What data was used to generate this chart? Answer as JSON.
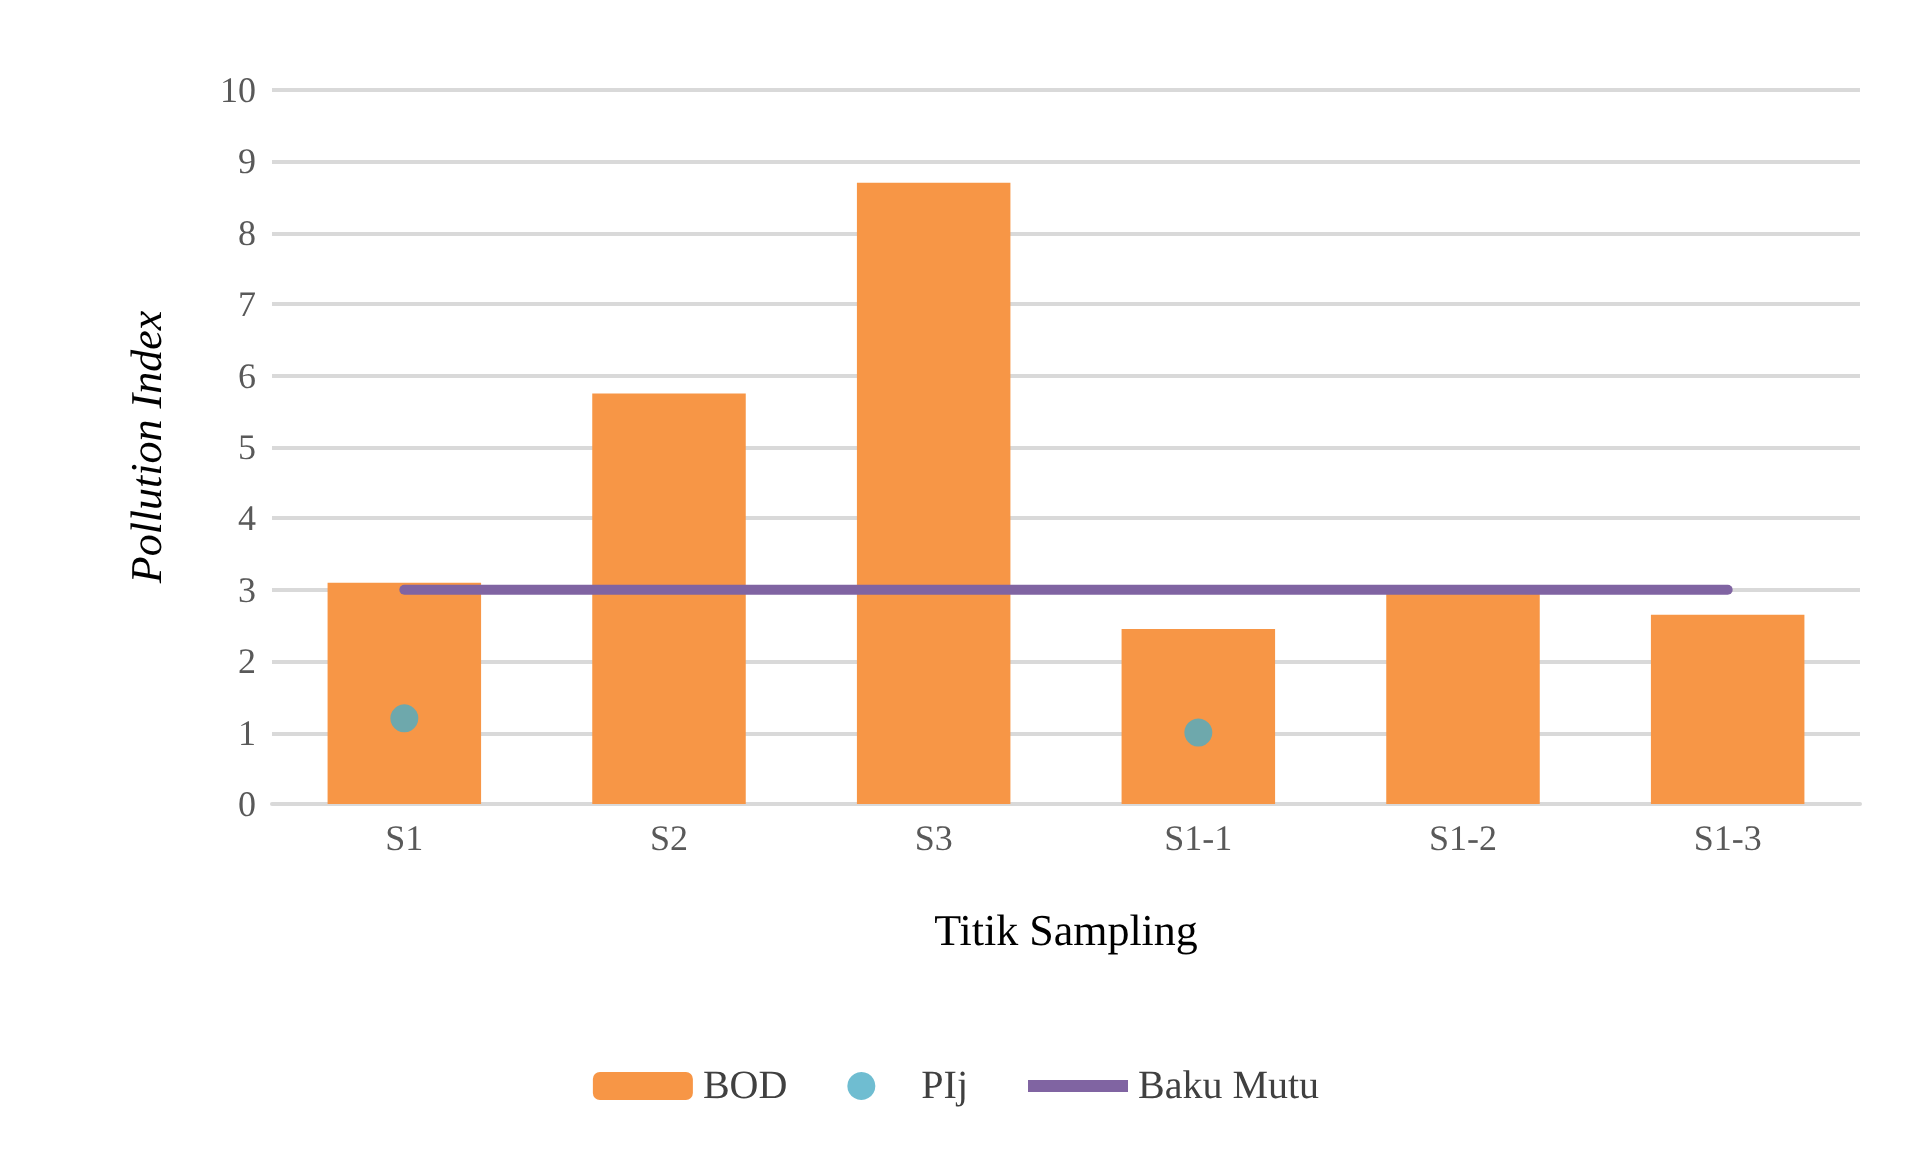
{
  "chart_data": {
    "type": "bar",
    "xlabel": "Titik Sampling",
    "ylabel": "Pollution Index",
    "categories": [
      "S1",
      "S2",
      "S3",
      "S1-1",
      "S1-2",
      "S1-3"
    ],
    "series": [
      {
        "name": "BOD",
        "color": "#f79646",
        "values": [
          3.1,
          5.75,
          8.7,
          2.45,
          2.95,
          2.65
        ]
      },
      {
        "name": "PIj",
        "type": "scatter",
        "color": "#4bacc6",
        "marker": "circle",
        "values": [
          1.2,
          null,
          null,
          1.0,
          null,
          null
        ]
      },
      {
        "name": "Baku Mutu",
        "type": "line",
        "color": "#8064a2",
        "marker": "none",
        "values": [
          3,
          3,
          3,
          3,
          3,
          3
        ]
      }
    ],
    "ylim": [
      0,
      10
    ],
    "yticks": [
      0,
      1,
      2,
      3,
      4,
      5,
      6,
      7,
      8,
      9,
      10
    ],
    "grid": "y",
    "legend": "bottom"
  }
}
